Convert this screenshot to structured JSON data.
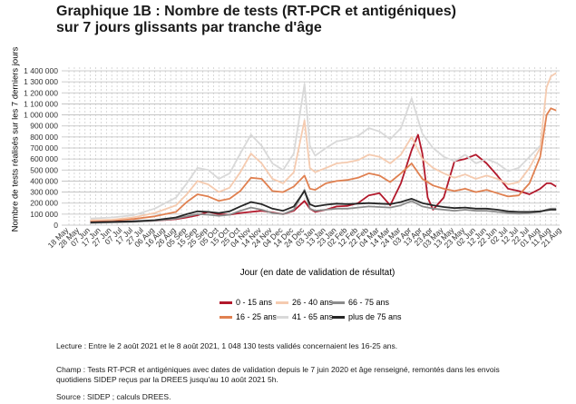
{
  "title": {
    "line1": "Graphique 1B : Nombre de tests (RT-PCR et antigéniques)",
    "line2": "sur 7 jours glissants par tranche d'âge"
  },
  "notes": {
    "lecture": "Lecture : Entre le 2 août 2021 et le 8 août 2021, 1 048 130 tests validés concernaient les 16-25 ans.",
    "champ_line1": "Champ : Tests RT-PCR et antigéniques avec dates de validation depuis le 7 juin 2020 et âge renseigné, remontés dans les envois",
    "champ_line2": "quotidiens SIDEP reçus par la DREES jusqu'au 10 août 2021 5h.",
    "source": "Source : SIDEP ; calculs DREES."
  },
  "colors": {
    "0-15": "#b2182b",
    "16-25": "#e08050",
    "26-40": "#f5cbb0",
    "41-65": "#d9d9d9",
    "66-75": "#8c8c8c",
    "75+": "#262626"
  },
  "chart_data": {
    "type": "line",
    "title": "Graphique 1B : Nombre de tests (RT-PCR et antigéniques) sur 7 jours glissants par tranche d'âge",
    "xlabel": "Jour (en date de validation de résultat)",
    "ylabel": "Nombre de tests réalisés sur les 7 derniers jours",
    "ylim": [
      0,
      1400000
    ],
    "yticks": [
      0,
      100000,
      200000,
      300000,
      400000,
      500000,
      600000,
      700000,
      800000,
      900000,
      1000000,
      1100000,
      1200000,
      1300000,
      1400000
    ],
    "ytick_labels": [
      "0",
      "100 000",
      "200 000",
      "300 000",
      "400 000",
      "500 000",
      "600 000",
      "700 000",
      "800 000",
      "900 000",
      "1 000 000",
      "1 100 000",
      "1 200 000",
      "1 300 000",
      "1 400 000"
    ],
    "xtick_labels": [
      "18 May",
      "28 May",
      "07 Jun",
      "17 Jun",
      "27 Jun",
      "07 Jul",
      "17 Jul",
      "27 Jul",
      "06 Aug",
      "16 Aug",
      "26 Aug",
      "05 Sep",
      "15 Sep",
      "25 Sep",
      "05 Oct",
      "15 Oct",
      "25 Oct",
      "04 Nov",
      "14 Nov",
      "24 Nov",
      "04 Dec",
      "14 Dec",
      "24 Dec",
      "03 Jan",
      "13 Jan",
      "23 Jan",
      "02 Feb",
      "12 Feb",
      "22 Feb",
      "04 Mar",
      "14 Mar",
      "24 Mar",
      "03 Apr",
      "13 Apr",
      "23 Apr",
      "03 May",
      "13 May",
      "23 May",
      "02 Jun",
      "12 Jun",
      "22 Jun",
      "02 Jul",
      "12 Jul",
      "22 Jul",
      "01 Aug",
      "11 Aug",
      "21 Aug"
    ],
    "grid": true,
    "legend_position": "bottom",
    "x_unit": "tick index (10-day steps from 18 May 2020)",
    "series": [
      {
        "name": "0 - 15 ans",
        "key": "0-15",
        "points": [
          [
            2,
            30000
          ],
          [
            4,
            32000
          ],
          [
            6,
            35000
          ],
          [
            8,
            40000
          ],
          [
            10,
            55000
          ],
          [
            11,
            70000
          ],
          [
            12,
            90000
          ],
          [
            13,
            120000
          ],
          [
            14,
            100000
          ],
          [
            15,
            95000
          ],
          [
            16,
            110000
          ],
          [
            17,
            120000
          ],
          [
            18,
            130000
          ],
          [
            19,
            115000
          ],
          [
            20,
            100000
          ],
          [
            21,
            130000
          ],
          [
            22,
            220000
          ],
          [
            22.5,
            150000
          ],
          [
            23,
            120000
          ],
          [
            24,
            140000
          ],
          [
            25,
            170000
          ],
          [
            26,
            175000
          ],
          [
            27,
            200000
          ],
          [
            28,
            270000
          ],
          [
            29,
            290000
          ],
          [
            30,
            180000
          ],
          [
            31,
            380000
          ],
          [
            32,
            680000
          ],
          [
            32.6,
            820000
          ],
          [
            33,
            650000
          ],
          [
            33.5,
            250000
          ],
          [
            34,
            140000
          ],
          [
            35,
            250000
          ],
          [
            36,
            580000
          ],
          [
            37,
            600000
          ],
          [
            38,
            640000
          ],
          [
            39,
            560000
          ],
          [
            40,
            450000
          ],
          [
            41,
            330000
          ],
          [
            42,
            310000
          ],
          [
            43,
            280000
          ],
          [
            44,
            330000
          ],
          [
            44.6,
            380000
          ],
          [
            45,
            380000
          ],
          [
            45.5,
            350000
          ]
        ]
      },
      {
        "name": "16 - 25 ans",
        "key": "16-25",
        "points": [
          [
            2,
            40000
          ],
          [
            4,
            45000
          ],
          [
            6,
            55000
          ],
          [
            8,
            80000
          ],
          [
            10,
            120000
          ],
          [
            11,
            210000
          ],
          [
            12,
            280000
          ],
          [
            13,
            260000
          ],
          [
            14,
            220000
          ],
          [
            15,
            240000
          ],
          [
            16,
            310000
          ],
          [
            17,
            430000
          ],
          [
            18,
            420000
          ],
          [
            19,
            310000
          ],
          [
            20,
            300000
          ],
          [
            21,
            350000
          ],
          [
            22,
            450000
          ],
          [
            22.5,
            330000
          ],
          [
            23,
            320000
          ],
          [
            24,
            380000
          ],
          [
            25,
            400000
          ],
          [
            26,
            410000
          ],
          [
            27,
            430000
          ],
          [
            28,
            470000
          ],
          [
            29,
            450000
          ],
          [
            30,
            390000
          ],
          [
            31,
            470000
          ],
          [
            32,
            560000
          ],
          [
            33,
            420000
          ],
          [
            34,
            360000
          ],
          [
            35,
            330000
          ],
          [
            36,
            310000
          ],
          [
            37,
            330000
          ],
          [
            38,
            300000
          ],
          [
            39,
            320000
          ],
          [
            40,
            290000
          ],
          [
            41,
            260000
          ],
          [
            42,
            270000
          ],
          [
            43,
            380000
          ],
          [
            44,
            620000
          ],
          [
            44.6,
            1000000
          ],
          [
            45,
            1060000
          ],
          [
            45.5,
            1040000
          ]
        ]
      },
      {
        "name": "26 - 40 ans",
        "key": "26-40",
        "points": [
          [
            2,
            45000
          ],
          [
            4,
            50000
          ],
          [
            6,
            70000
          ],
          [
            8,
            110000
          ],
          [
            10,
            180000
          ],
          [
            11,
            280000
          ],
          [
            12,
            400000
          ],
          [
            13,
            370000
          ],
          [
            14,
            300000
          ],
          [
            15,
            340000
          ],
          [
            16,
            480000
          ],
          [
            17,
            650000
          ],
          [
            18,
            560000
          ],
          [
            19,
            420000
          ],
          [
            20,
            380000
          ],
          [
            21,
            480000
          ],
          [
            22,
            950000
          ],
          [
            22.5,
            520000
          ],
          [
            23,
            480000
          ],
          [
            24,
            520000
          ],
          [
            25,
            560000
          ],
          [
            26,
            570000
          ],
          [
            27,
            590000
          ],
          [
            28,
            640000
          ],
          [
            29,
            620000
          ],
          [
            30,
            560000
          ],
          [
            31,
            640000
          ],
          [
            32,
            800000
          ],
          [
            33,
            600000
          ],
          [
            34,
            520000
          ],
          [
            35,
            470000
          ],
          [
            36,
            430000
          ],
          [
            37,
            460000
          ],
          [
            38,
            420000
          ],
          [
            39,
            450000
          ],
          [
            40,
            420000
          ],
          [
            41,
            370000
          ],
          [
            42,
            390000
          ],
          [
            43,
            520000
          ],
          [
            44,
            700000
          ],
          [
            44.6,
            1250000
          ],
          [
            45,
            1350000
          ],
          [
            45.5,
            1380000
          ]
        ]
      },
      {
        "name": "41 - 65 ans",
        "key": "41-65",
        "points": [
          [
            2,
            60000
          ],
          [
            4,
            70000
          ],
          [
            6,
            90000
          ],
          [
            8,
            150000
          ],
          [
            10,
            250000
          ],
          [
            11,
            380000
          ],
          [
            12,
            520000
          ],
          [
            13,
            500000
          ],
          [
            14,
            420000
          ],
          [
            15,
            470000
          ],
          [
            16,
            650000
          ],
          [
            17,
            820000
          ],
          [
            18,
            720000
          ],
          [
            19,
            560000
          ],
          [
            20,
            500000
          ],
          [
            21,
            650000
          ],
          [
            22,
            1280000
          ],
          [
            22.5,
            720000
          ],
          [
            23,
            630000
          ],
          [
            24,
            700000
          ],
          [
            25,
            760000
          ],
          [
            26,
            780000
          ],
          [
            27,
            810000
          ],
          [
            28,
            880000
          ],
          [
            29,
            850000
          ],
          [
            30,
            780000
          ],
          [
            31,
            880000
          ],
          [
            32,
            1150000
          ],
          [
            33,
            830000
          ],
          [
            34,
            700000
          ],
          [
            35,
            620000
          ],
          [
            36,
            580000
          ],
          [
            37,
            640000
          ],
          [
            38,
            560000
          ],
          [
            39,
            600000
          ],
          [
            40,
            560000
          ],
          [
            41,
            490000
          ],
          [
            42,
            520000
          ],
          [
            43,
            620000
          ],
          [
            44,
            720000
          ]
        ]
      },
      {
        "name": "66 - 75 ans",
        "key": "66-75",
        "points": [
          [
            2,
            20000
          ],
          [
            4,
            25000
          ],
          [
            6,
            30000
          ],
          [
            8,
            40000
          ],
          [
            10,
            60000
          ],
          [
            11,
            80000
          ],
          [
            12,
            100000
          ],
          [
            13,
            95000
          ],
          [
            14,
            85000
          ],
          [
            15,
            95000
          ],
          [
            16,
            130000
          ],
          [
            17,
            160000
          ],
          [
            18,
            140000
          ],
          [
            19,
            110000
          ],
          [
            20,
            100000
          ],
          [
            21,
            140000
          ],
          [
            22,
            320000
          ],
          [
            22.5,
            150000
          ],
          [
            23,
            130000
          ],
          [
            24,
            140000
          ],
          [
            25,
            150000
          ],
          [
            26,
            150000
          ],
          [
            27,
            160000
          ],
          [
            28,
            170000
          ],
          [
            29,
            165000
          ],
          [
            30,
            160000
          ],
          [
            31,
            180000
          ],
          [
            32,
            220000
          ],
          [
            33,
            170000
          ],
          [
            34,
            150000
          ],
          [
            35,
            140000
          ],
          [
            36,
            130000
          ],
          [
            37,
            140000
          ],
          [
            38,
            130000
          ],
          [
            39,
            130000
          ],
          [
            40,
            120000
          ],
          [
            41,
            110000
          ],
          [
            42,
            105000
          ],
          [
            43,
            110000
          ],
          [
            44,
            120000
          ],
          [
            44.6,
            140000
          ],
          [
            45,
            150000
          ],
          [
            45.5,
            150000
          ]
        ]
      },
      {
        "name": "plus de 75 ans",
        "key": "75+",
        "points": [
          [
            2,
            25000
          ],
          [
            4,
            30000
          ],
          [
            6,
            35000
          ],
          [
            8,
            45000
          ],
          [
            10,
            70000
          ],
          [
            11,
            100000
          ],
          [
            12,
            125000
          ],
          [
            13,
            120000
          ],
          [
            14,
            110000
          ],
          [
            15,
            125000
          ],
          [
            16,
            170000
          ],
          [
            17,
            210000
          ],
          [
            18,
            190000
          ],
          [
            19,
            150000
          ],
          [
            20,
            130000
          ],
          [
            21,
            170000
          ],
          [
            22,
            310000
          ],
          [
            22.5,
            190000
          ],
          [
            23,
            170000
          ],
          [
            24,
            185000
          ],
          [
            25,
            195000
          ],
          [
            26,
            190000
          ],
          [
            27,
            195000
          ],
          [
            28,
            200000
          ],
          [
            29,
            195000
          ],
          [
            30,
            190000
          ],
          [
            31,
            210000
          ],
          [
            32,
            240000
          ],
          [
            33,
            200000
          ],
          [
            34,
            180000
          ],
          [
            35,
            165000
          ],
          [
            36,
            155000
          ],
          [
            37,
            160000
          ],
          [
            38,
            150000
          ],
          [
            39,
            150000
          ],
          [
            40,
            140000
          ],
          [
            41,
            125000
          ],
          [
            42,
            120000
          ],
          [
            43,
            120000
          ],
          [
            44,
            125000
          ],
          [
            44.6,
            135000
          ],
          [
            45,
            140000
          ],
          [
            45.5,
            140000
          ]
        ]
      }
    ]
  }
}
